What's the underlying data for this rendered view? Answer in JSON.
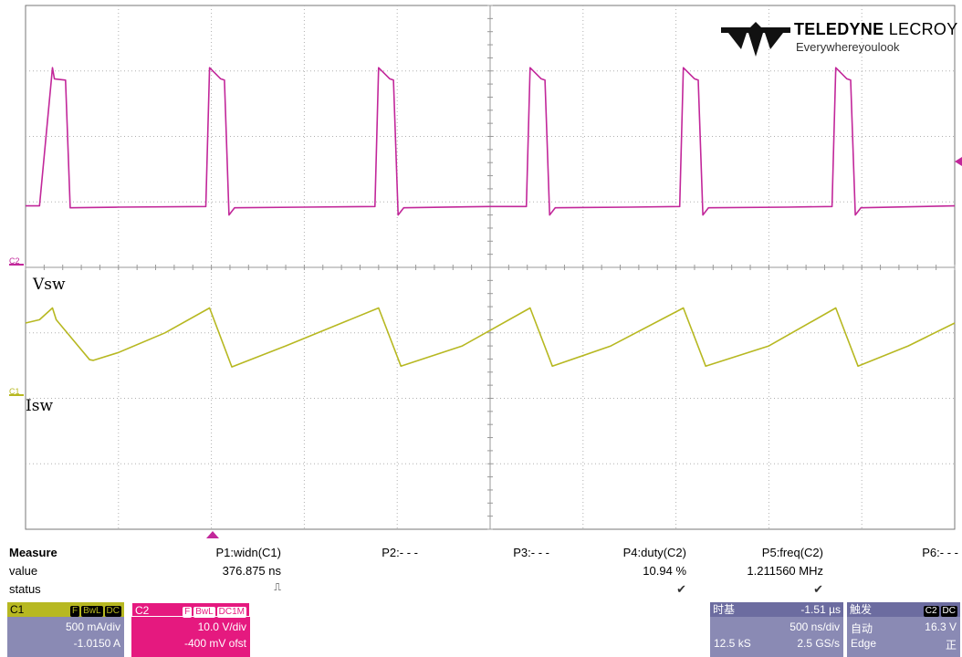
{
  "scope": {
    "colors": {
      "grid": "#b0b0b0",
      "c1": "#b7b821",
      "c2": "#c2279a",
      "background": "#ffffff"
    },
    "grid": {
      "divisions_x": 10,
      "divisions_y": 8
    },
    "timebase": "500 ns/div",
    "channel_markers": {
      "c2": "C2",
      "c1": "C1"
    },
    "waveform_labels": {
      "vsw": "Vsw",
      "isw": "Isw"
    },
    "logo": {
      "brand_bold": "TELEDYNE",
      "brand_light": " LECROY",
      "tagline": "Everywhereyoulook"
    }
  },
  "chart_data": {
    "type": "line",
    "title": "",
    "xlabel": "",
    "ylabel": "",
    "xlim": [
      0,
      10
    ],
    "series": [
      {
        "name": "Vsw",
        "x_div": [
          0,
          0.15,
          0.29,
          0.31,
          0.43,
          0.48,
          1.0,
          1.94,
          1.98,
          2.1,
          2.14,
          2.19,
          2.25,
          3.0,
          3.76,
          3.8,
          3.92,
          3.96,
          4.01,
          4.07,
          5.0,
          5.39,
          5.43,
          5.55,
          5.59,
          5.64,
          5.7,
          6.5,
          7.04,
          7.08,
          7.2,
          7.24,
          7.29,
          7.35,
          8.2,
          8.68,
          8.72,
          8.84,
          8.88,
          8.93,
          8.99,
          10.0
        ],
        "y_div": [
          0.94,
          0.94,
          3.05,
          2.88,
          2.86,
          0.91,
          0.92,
          0.93,
          3.05,
          2.88,
          2.86,
          0.8,
          0.91,
          0.92,
          0.93,
          3.05,
          2.88,
          2.86,
          0.8,
          0.91,
          0.93,
          0.93,
          3.05,
          2.88,
          2.86,
          0.8,
          0.91,
          0.92,
          0.93,
          3.05,
          2.88,
          2.86,
          0.8,
          0.91,
          0.92,
          0.93,
          3.05,
          2.88,
          2.86,
          0.8,
          0.91,
          0.94
        ]
      },
      {
        "name": "Isw",
        "x_div": [
          0,
          0.15,
          0.29,
          0.33,
          0.69,
          0.73,
          1.0,
          1.5,
          1.98,
          2.22,
          2.8,
          3.8,
          4.04,
          4.7,
          5.43,
          5.67,
          6.3,
          7.08,
          7.32,
          8.0,
          8.72,
          8.96,
          9.5,
          10.0
        ],
        "y_div": [
          -0.85,
          -0.8,
          -0.62,
          -0.8,
          -1.41,
          -1.42,
          -1.3,
          -1.0,
          -0.62,
          -1.52,
          -1.2,
          -0.62,
          -1.51,
          -1.2,
          -0.62,
          -1.51,
          -1.2,
          -0.62,
          -1.51,
          -1.2,
          -0.62,
          -1.51,
          -1.2,
          -0.85
        ]
      }
    ]
  },
  "measure": {
    "header_label": "Measure",
    "row_value_label": "value",
    "row_status_label": "status",
    "params": [
      {
        "name": "P1:widn(C1)",
        "value": "376.875 ns",
        "status": "⎍"
      },
      {
        "name": "P2:- - -",
        "value": "",
        "status": ""
      },
      {
        "name": "P3:- - -",
        "value": "",
        "status": ""
      },
      {
        "name": "P4:duty(C2)",
        "value": "10.94 %",
        "status": "✔"
      },
      {
        "name": "P5:freq(C2)",
        "value": "1.211560 MHz",
        "status": "✔"
      },
      {
        "name": "P6:- - -",
        "value": "",
        "status": ""
      }
    ]
  },
  "c1_box": {
    "name": "C1",
    "tags": [
      "F",
      "BwL",
      "DC"
    ],
    "scale": "500 mA/div",
    "offset": "-1.0150 A"
  },
  "c2_box": {
    "name": "C2",
    "tags": [
      "F",
      "BwL",
      "DC1M"
    ],
    "scale": "10.0 V/div",
    "offset": "-400 mV ofst"
  },
  "timebase_box": {
    "title": "时基",
    "delay": "-1.51 µs",
    "scale": "500 ns/div",
    "samples": "12.5 kS",
    "rate": "2.5 GS/s"
  },
  "trigger_box": {
    "title": "触发",
    "source_tags": [
      "C2",
      "DC"
    ],
    "mode": "自动",
    "level": "16.3 V",
    "type": "Edge",
    "slope": "正"
  }
}
